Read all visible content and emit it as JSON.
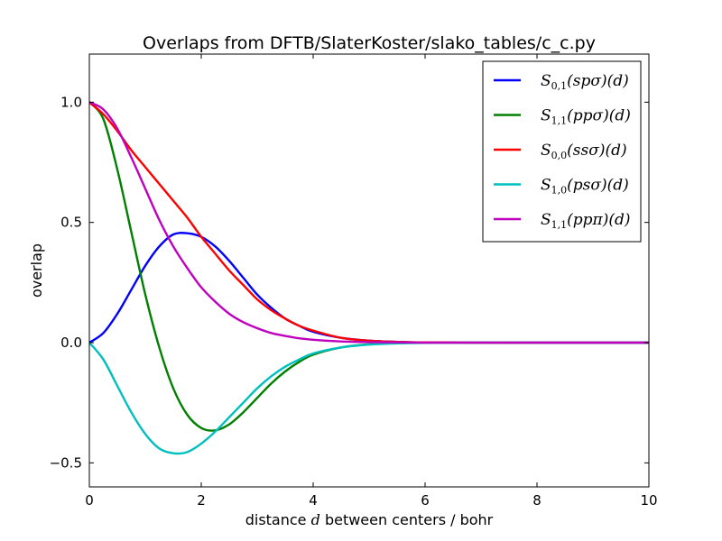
{
  "chart_data": {
    "type": "line",
    "title": "Overlaps from DFTB/SlaterKoster/slako_tables/c_c.py",
    "xlabel_pre": "distance ",
    "xlabel_var": "d",
    "xlabel_post": " between centers / bohr",
    "ylabel": "overlap",
    "xlim": [
      0,
      10
    ],
    "ylim": [
      -0.6,
      1.2
    ],
    "xticks": [
      0,
      2,
      4,
      6,
      8,
      10
    ],
    "xtick_labels": [
      "0",
      "2",
      "4",
      "6",
      "8",
      "10"
    ],
    "yticks": [
      -0.5,
      0.0,
      0.5,
      1.0
    ],
    "ytick_labels": [
      "−0.5",
      "0.0",
      "0.5",
      "1.0"
    ],
    "legend_position": "top-right",
    "series": [
      {
        "name": "S_{0,1}(spσ)(d)",
        "label_main": "S",
        "label_sub": "0,1",
        "label_rest": "(spσ)(d)",
        "color": "#0000ff",
        "x": [
          0,
          0.25,
          0.5,
          0.75,
          1.0,
          1.25,
          1.5,
          1.75,
          2.0,
          2.25,
          2.5,
          2.75,
          3.0,
          3.25,
          3.5,
          3.75,
          4.0,
          4.5,
          5.0,
          5.5,
          6.0,
          7.0,
          8.0,
          10.0
        ],
        "y": [
          0,
          0.04,
          0.12,
          0.22,
          0.32,
          0.4,
          0.45,
          0.455,
          0.44,
          0.4,
          0.34,
          0.27,
          0.2,
          0.145,
          0.1,
          0.07,
          0.045,
          0.02,
          0.008,
          0.003,
          0.001,
          0,
          0,
          0
        ]
      },
      {
        "name": "S_{1,1}(ppσ)(d)",
        "label_main": "S",
        "label_sub": "1,1",
        "label_rest": "(ppσ)(d)",
        "color": "#008000",
        "x": [
          0,
          0.25,
          0.5,
          0.75,
          1.0,
          1.25,
          1.5,
          1.75,
          2.0,
          2.25,
          2.5,
          2.75,
          3.0,
          3.25,
          3.5,
          3.75,
          4.0,
          4.5,
          5.0,
          5.5,
          6.0,
          7.0,
          8.0,
          10.0
        ],
        "y": [
          1.0,
          0.93,
          0.72,
          0.46,
          0.2,
          -0.02,
          -0.19,
          -0.3,
          -0.355,
          -0.365,
          -0.34,
          -0.29,
          -0.23,
          -0.17,
          -0.12,
          -0.08,
          -0.05,
          -0.02,
          -0.007,
          -0.002,
          0,
          0,
          0,
          0
        ]
      },
      {
        "name": "S_{0,0}(ssσ)(d)",
        "label_main": "S",
        "label_sub": "0,0",
        "label_rest": "(ssσ)(d)",
        "color": "#ff0000",
        "x": [
          0,
          0.25,
          0.5,
          0.75,
          1.0,
          1.25,
          1.5,
          1.75,
          2.0,
          2.25,
          2.5,
          2.75,
          3.0,
          3.25,
          3.5,
          3.75,
          4.0,
          4.5,
          5.0,
          5.5,
          6.0,
          7.0,
          8.0,
          10.0
        ],
        "y": [
          1.0,
          0.95,
          0.88,
          0.8,
          0.73,
          0.66,
          0.59,
          0.52,
          0.44,
          0.37,
          0.3,
          0.24,
          0.18,
          0.135,
          0.1,
          0.07,
          0.05,
          0.02,
          0.008,
          0.003,
          0.001,
          0,
          0,
          0
        ]
      },
      {
        "name": "S_{1,0}(psσ)(d)",
        "label_main": "S",
        "label_sub": "1,0",
        "label_rest": "(psσ)(d)",
        "color": "#00bfbf",
        "x": [
          0,
          0.25,
          0.5,
          0.75,
          1.0,
          1.25,
          1.5,
          1.75,
          2.0,
          2.25,
          2.5,
          2.75,
          3.0,
          3.25,
          3.5,
          3.75,
          4.0,
          4.5,
          5.0,
          5.5,
          6.0,
          7.0,
          8.0,
          10.0
        ],
        "y": [
          0,
          -0.07,
          -0.18,
          -0.29,
          -0.38,
          -0.44,
          -0.46,
          -0.455,
          -0.42,
          -0.37,
          -0.31,
          -0.25,
          -0.19,
          -0.14,
          -0.1,
          -0.07,
          -0.045,
          -0.02,
          -0.008,
          -0.003,
          -0.001,
          0,
          0,
          0
        ]
      },
      {
        "name": "S_{1,1}(ppπ)(d)",
        "label_main": "S",
        "label_sub": "1,1",
        "label_rest": "(ppπ)(d)",
        "color": "#bf00bf",
        "x": [
          0,
          0.25,
          0.5,
          0.75,
          1.0,
          1.25,
          1.5,
          1.75,
          2.0,
          2.25,
          2.5,
          2.75,
          3.0,
          3.25,
          3.5,
          3.75,
          4.0,
          4.5,
          5.0,
          5.5,
          6.0,
          7.0,
          8.0,
          10.0
        ],
        "y": [
          1.0,
          0.97,
          0.89,
          0.77,
          0.64,
          0.51,
          0.4,
          0.31,
          0.23,
          0.17,
          0.12,
          0.085,
          0.06,
          0.04,
          0.028,
          0.018,
          0.012,
          0.005,
          0.002,
          0.001,
          0,
          0,
          0,
          0
        ]
      }
    ]
  }
}
